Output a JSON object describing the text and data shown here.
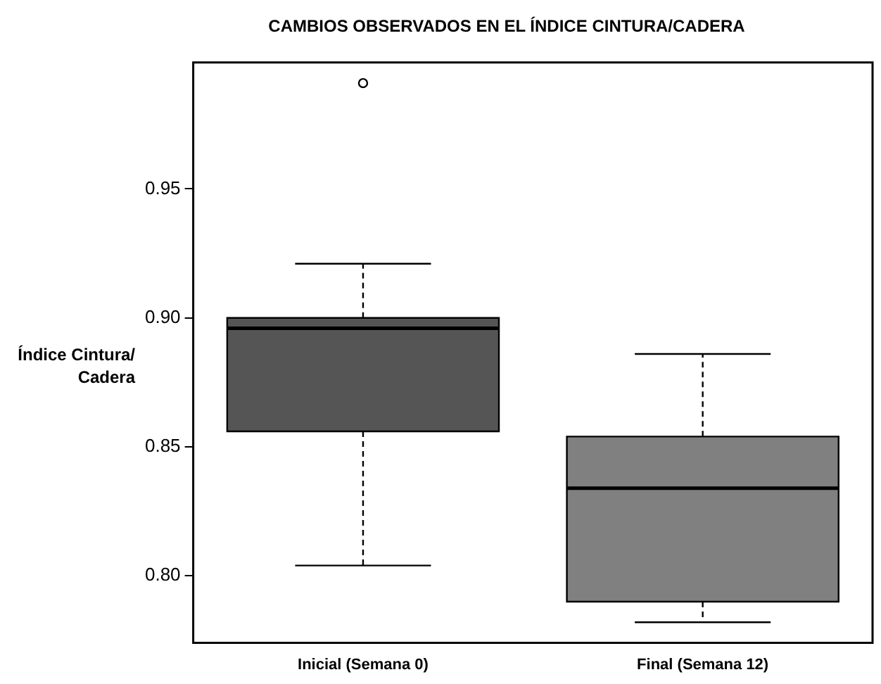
{
  "chart_data": {
    "type": "box",
    "title": "CAMBIOS OBSERVADOS EN EL ÍNDICE CINTURA/CADERA",
    "ylabel": "Índice Cintura/ Cadera",
    "categories": [
      "Inicial (Semana 0)",
      "Final (Semana 12)"
    ],
    "colors": [
      "#555555",
      "#808080"
    ],
    "boxes": [
      {
        "low": 0.804,
        "q1": 0.856,
        "median": 0.896,
        "q3": 0.9,
        "high": 0.921,
        "outliers": [
          0.991
        ]
      },
      {
        "low": 0.782,
        "q1": 0.79,
        "median": 0.834,
        "q3": 0.854,
        "high": 0.886
      }
    ],
    "ylim": [
      0.774,
      0.999
    ],
    "yticks": [
      {
        "value": 0.8,
        "label": "0.80"
      },
      0.85,
      {
        "value": 0.9,
        "label": "0.90"
      },
      0.95
    ],
    "grid": false,
    "legend": false
  }
}
